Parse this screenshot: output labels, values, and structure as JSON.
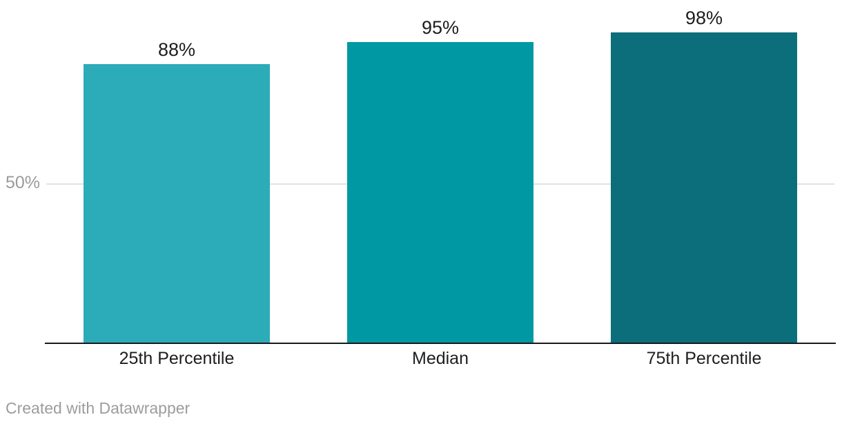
{
  "chart_data": {
    "type": "bar",
    "title": "",
    "xlabel": "",
    "ylabel": "",
    "categories": [
      "25th Percentile",
      "Median",
      "75th Percentile"
    ],
    "values": [
      88,
      95,
      98
    ],
    "value_labels": [
      "88%",
      "95%",
      "98%"
    ],
    "bar_colors": [
      "#2cabb8",
      "#0098a2",
      "#0d6e7b"
    ],
    "ylim": [
      0,
      100
    ],
    "legend_position": "none",
    "grid": "single horizontal gridline",
    "gridlines": [
      {
        "value": 50,
        "label": "50%"
      }
    ]
  },
  "footer": {
    "attribution": "Created with Datawrapper"
  },
  "colors": {
    "background": "#ffffff",
    "axis_line": "#18181b",
    "gridline": "#e2e2e2",
    "tick_label_text": "#9b9b9b",
    "value_label_text": "#1d1d1d",
    "category_label_text": "#1d1d1d",
    "footer_text": "#9c9c9c"
  }
}
